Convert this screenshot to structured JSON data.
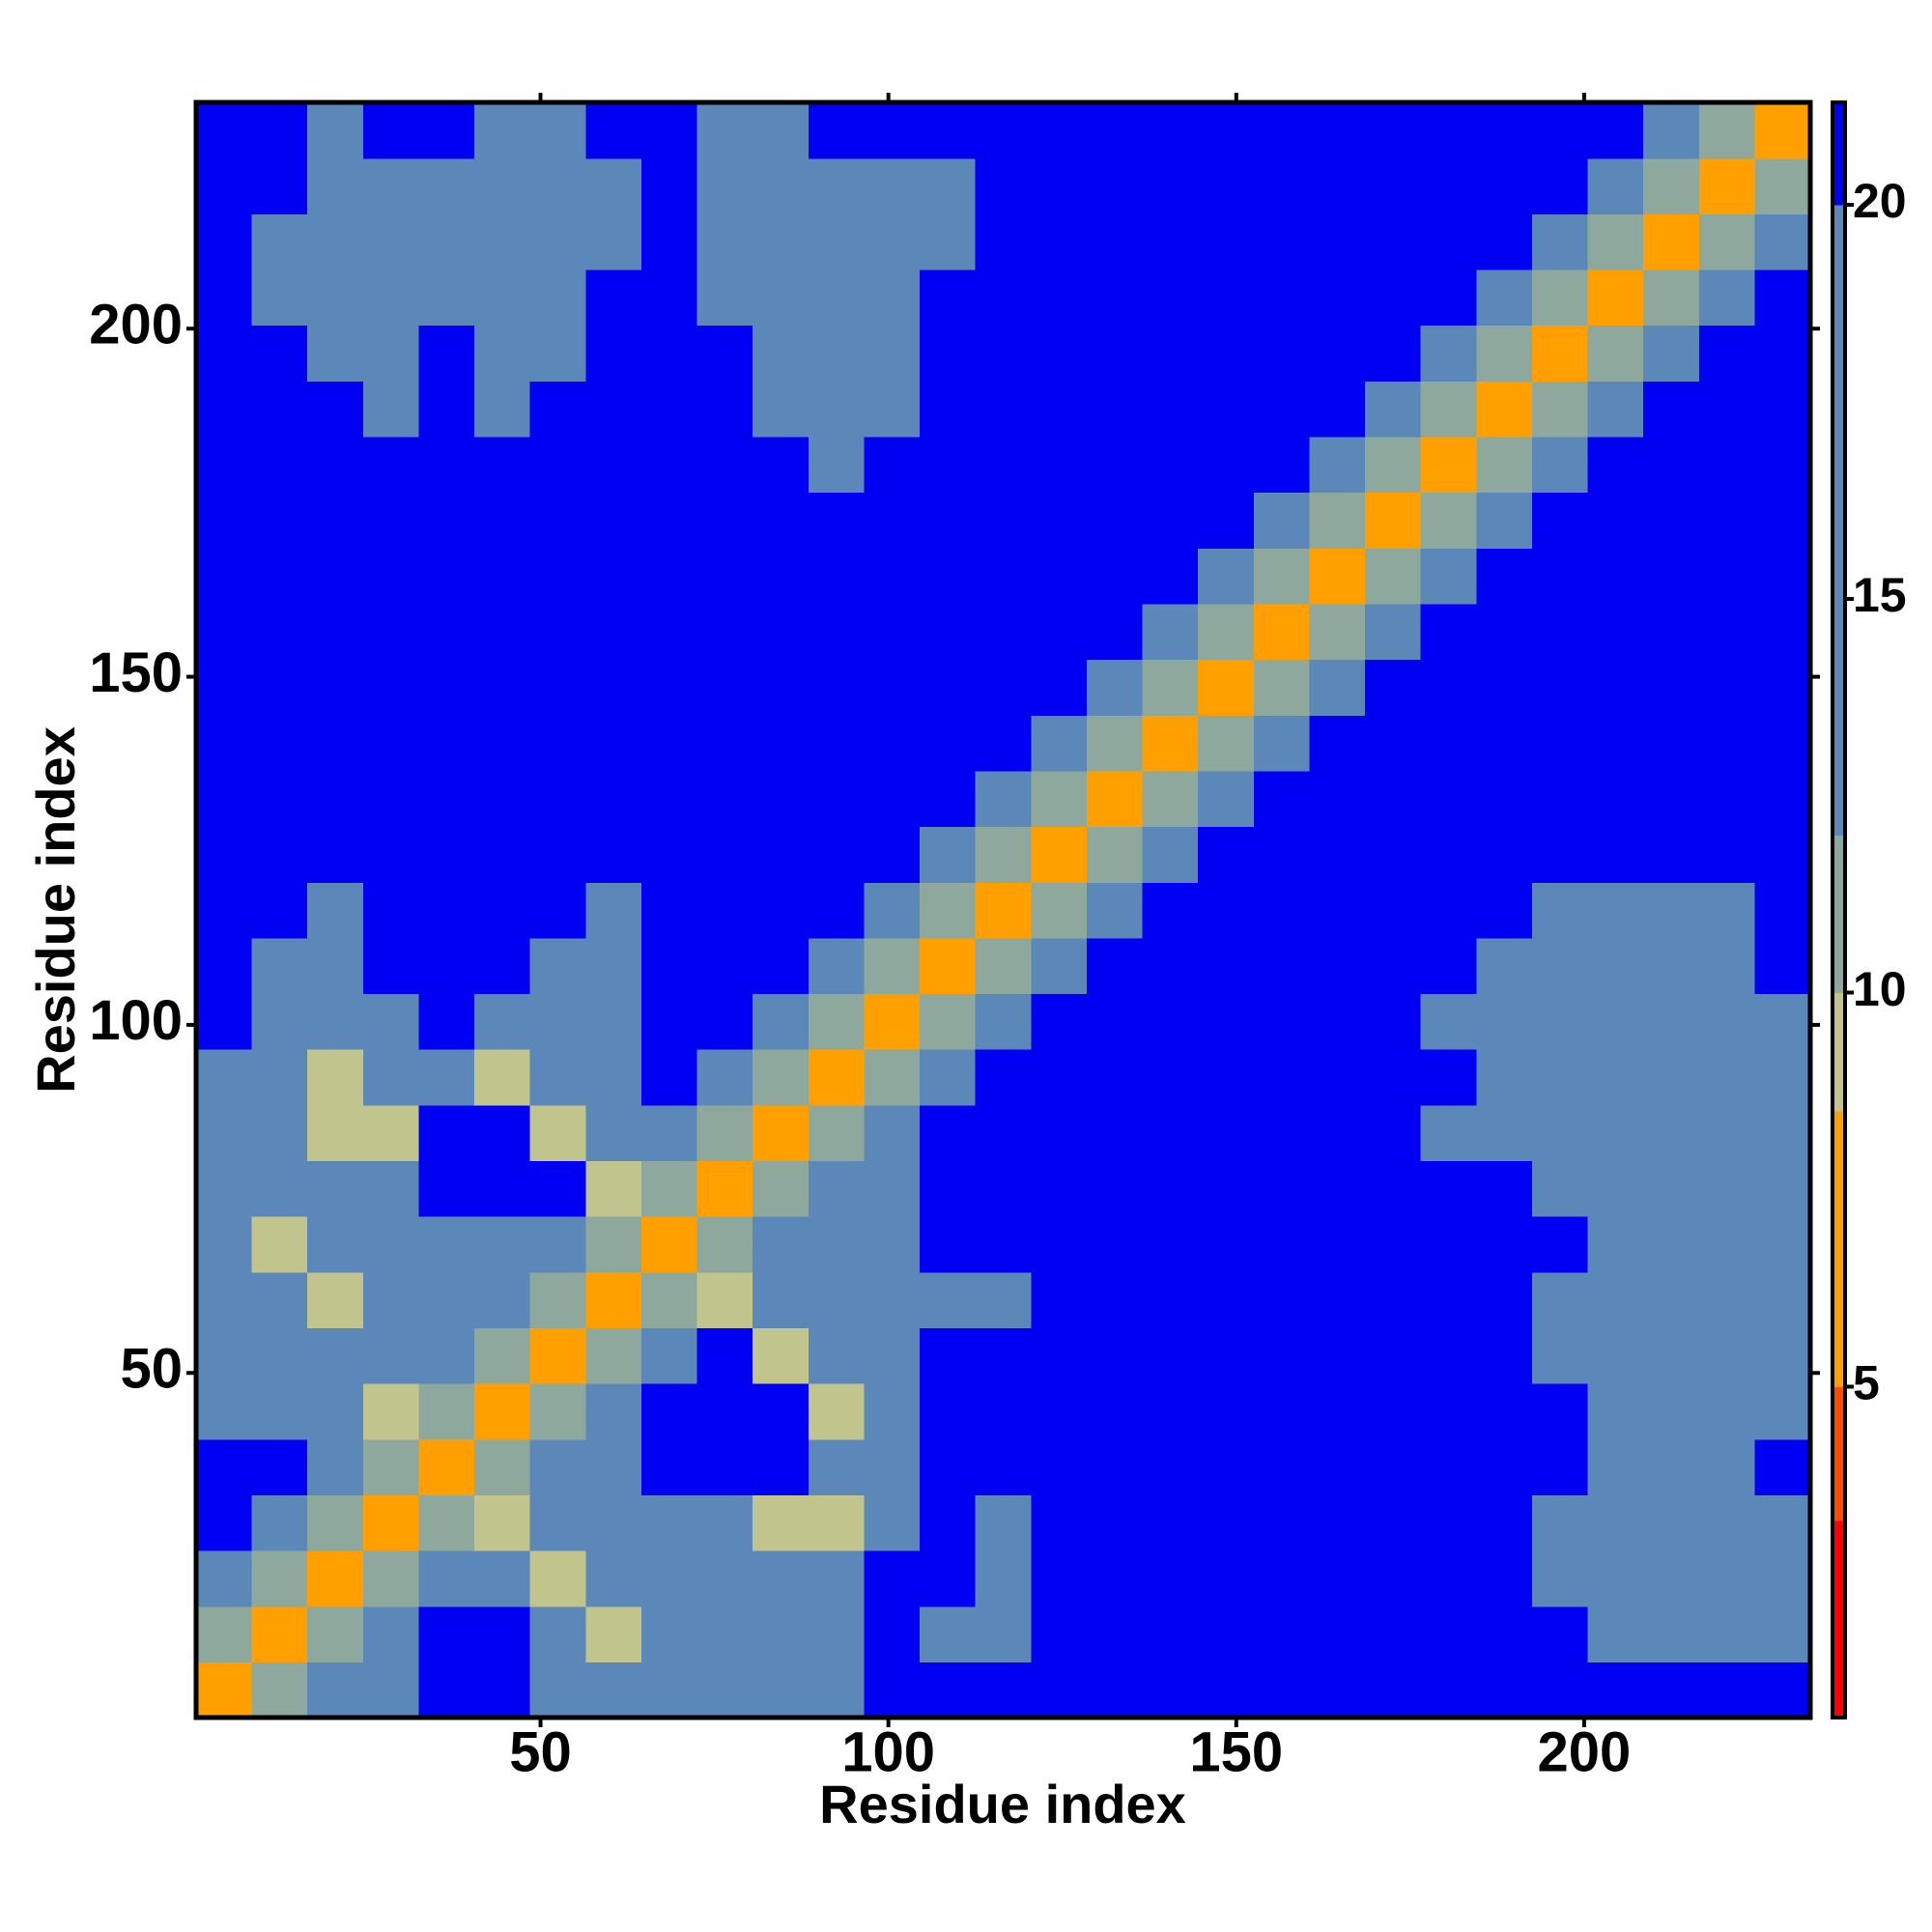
{
  "chart_data": {
    "type": "heatmap",
    "xlabel": "Residue index",
    "ylabel": "Residue index",
    "xlim": [
      0.5,
      232.5
    ],
    "ylim": [
      0.5,
      232.5
    ],
    "xticks": [
      50,
      100,
      150,
      200
    ],
    "yticks": [
      50,
      100,
      150,
      200
    ],
    "x_bins": [
      0.5,
      8.5,
      16.5,
      24.5,
      32.5,
      40.5,
      48.5,
      56.5,
      64.5,
      72.5,
      80.5,
      88.5,
      96.5,
      104.5,
      112.5,
      120.5,
      128.5,
      136.5,
      144.5,
      152.5,
      160.5,
      168.5,
      176.5,
      184.5,
      192.5,
      200.5,
      208.5,
      216.5,
      224.5,
      232.5
    ],
    "y_bins": [
      0.5,
      8.5,
      16.5,
      24.5,
      32.5,
      40.5,
      48.5,
      56.5,
      64.5,
      72.5,
      80.5,
      88.5,
      96.5,
      104.5,
      112.5,
      120.5,
      128.5,
      136.5,
      144.5,
      152.5,
      160.5,
      168.5,
      176.5,
      184.5,
      192.5,
      200.5,
      208.5,
      216.5,
      224.5,
      232.5
    ],
    "z": [
      [
        5,
        11,
        16,
        16,
        21,
        21,
        16,
        16,
        16,
        16,
        16,
        16,
        21,
        21,
        21,
        21,
        21,
        21,
        21,
        21,
        21,
        21,
        21,
        21,
        21,
        21,
        21,
        21,
        21
      ],
      [
        11,
        5,
        11,
        16,
        21,
        21,
        16,
        9,
        16,
        16,
        16,
        16,
        21,
        19,
        19,
        21,
        21,
        21,
        21,
        21,
        21,
        21,
        21,
        21,
        21,
        19,
        16,
        16,
        19
      ],
      [
        16,
        11,
        5,
        11,
        16,
        16,
        9,
        16,
        16,
        16,
        16,
        16,
        21,
        21,
        19,
        21,
        21,
        21,
        21,
        21,
        21,
        21,
        21,
        21,
        19,
        16,
        16,
        16,
        19
      ],
      [
        21,
        16,
        11,
        5,
        11,
        9,
        16,
        16,
        16,
        16,
        9,
        9,
        16,
        21,
        19,
        21,
        21,
        21,
        21,
        21,
        21,
        21,
        21,
        21,
        19,
        19,
        16,
        16,
        19
      ],
      [
        21,
        21,
        16,
        11,
        5,
        11,
        16,
        16,
        21,
        21,
        21,
        16,
        16,
        21,
        21,
        21,
        21,
        21,
        21,
        21,
        21,
        21,
        21,
        21,
        21,
        19,
        16,
        19,
        21
      ],
      [
        16,
        16,
        16,
        9,
        11,
        5,
        11,
        16,
        21,
        21,
        21,
        9,
        16,
        21,
        21,
        21,
        21,
        21,
        21,
        21,
        21,
        21,
        21,
        21,
        21,
        19,
        16,
        19,
        19
      ],
      [
        16,
        16,
        16,
        16,
        16,
        11,
        5,
        11,
        16,
        21,
        9,
        16,
        16,
        21,
        21,
        21,
        21,
        21,
        21,
        21,
        21,
        21,
        21,
        21,
        19,
        19,
        16,
        16,
        19
      ],
      [
        16,
        16,
        9,
        16,
        16,
        16,
        11,
        5,
        11,
        9,
        16,
        16,
        16,
        16,
        19,
        21,
        21,
        21,
        21,
        21,
        21,
        21,
        21,
        21,
        19,
        19,
        16,
        16,
        19
      ],
      [
        16,
        9,
        16,
        16,
        16,
        16,
        16,
        11,
        5,
        11,
        16,
        16,
        16,
        21,
        21,
        21,
        21,
        21,
        21,
        21,
        21,
        21,
        21,
        21,
        21,
        19,
        16,
        19,
        19
      ],
      [
        16,
        16,
        16,
        16,
        21,
        21,
        21,
        9,
        11,
        5,
        11,
        16,
        16,
        21,
        21,
        21,
        21,
        21,
        21,
        21,
        21,
        21,
        21,
        21,
        19,
        16,
        16,
        16,
        19
      ],
      [
        16,
        16,
        9,
        9,
        21,
        21,
        9,
        16,
        16,
        11,
        5,
        11,
        16,
        21,
        21,
        21,
        21,
        21,
        21,
        21,
        21,
        21,
        19,
        19,
        19,
        16,
        16,
        16,
        16
      ],
      [
        16,
        16,
        9,
        16,
        16,
        9,
        16,
        16,
        21,
        16,
        11,
        5,
        11,
        16,
        21,
        21,
        21,
        21,
        21,
        21,
        21,
        21,
        21,
        19,
        19,
        16,
        16,
        16,
        16
      ],
      [
        21,
        16,
        16,
        16,
        21,
        16,
        16,
        16,
        21,
        21,
        16,
        11,
        5,
        11,
        16,
        21,
        21,
        21,
        21,
        21,
        21,
        21,
        19,
        19,
        19,
        19,
        16,
        19,
        19
      ],
      [
        21,
        19,
        19,
        21,
        21,
        21,
        19,
        16,
        21,
        21,
        21,
        16,
        11,
        5,
        11,
        16,
        21,
        21,
        21,
        21,
        21,
        21,
        21,
        19,
        19,
        16,
        16,
        19,
        21
      ],
      [
        21,
        21,
        19,
        21,
        21,
        21,
        21,
        19,
        21,
        21,
        21,
        21,
        16,
        11,
        5,
        11,
        16,
        21,
        21,
        21,
        21,
        21,
        21,
        21,
        19,
        19,
        19,
        19,
        21
      ],
      [
        21,
        21,
        21,
        21,
        21,
        21,
        21,
        21,
        21,
        21,
        21,
        21,
        21,
        16,
        11,
        5,
        11,
        16,
        21,
        21,
        21,
        21,
        21,
        21,
        21,
        21,
        21,
        21,
        21
      ],
      [
        21,
        21,
        21,
        21,
        21,
        21,
        21,
        21,
        21,
        21,
        21,
        21,
        21,
        21,
        16,
        11,
        5,
        11,
        16,
        21,
        21,
        21,
        21,
        21,
        21,
        21,
        21,
        21,
        21
      ],
      [
        21,
        21,
        21,
        21,
        21,
        21,
        21,
        21,
        21,
        21,
        21,
        21,
        21,
        21,
        21,
        16,
        11,
        5,
        11,
        16,
        21,
        21,
        21,
        21,
        21,
        21,
        21,
        21,
        21
      ],
      [
        21,
        21,
        21,
        21,
        21,
        21,
        21,
        21,
        21,
        21,
        21,
        21,
        21,
        21,
        21,
        21,
        16,
        11,
        5,
        11,
        16,
        21,
        21,
        21,
        21,
        21,
        21,
        21,
        21
      ],
      [
        21,
        21,
        21,
        21,
        21,
        21,
        21,
        21,
        21,
        21,
        21,
        21,
        21,
        21,
        21,
        21,
        21,
        16,
        11,
        5,
        11,
        16,
        21,
        21,
        21,
        21,
        21,
        21,
        21
      ],
      [
        21,
        21,
        21,
        21,
        21,
        21,
        21,
        21,
        21,
        21,
        21,
        21,
        21,
        21,
        21,
        21,
        21,
        21,
        16,
        11,
        5,
        11,
        16,
        21,
        21,
        21,
        21,
        21,
        21
      ],
      [
        21,
        21,
        21,
        21,
        21,
        21,
        21,
        21,
        21,
        21,
        21,
        21,
        21,
        21,
        21,
        21,
        21,
        21,
        21,
        16,
        11,
        5,
        11,
        16,
        21,
        21,
        21,
        21,
        21
      ],
      [
        21,
        21,
        21,
        21,
        21,
        21,
        21,
        21,
        21,
        21,
        21,
        19,
        21,
        21,
        21,
        21,
        21,
        21,
        21,
        21,
        16,
        11,
        5,
        11,
        16,
        21,
        21,
        21,
        21
      ],
      [
        21,
        21,
        21,
        19,
        21,
        19,
        21,
        21,
        21,
        21,
        19,
        19,
        19,
        21,
        21,
        21,
        21,
        21,
        21,
        21,
        21,
        16,
        11,
        5,
        11,
        16,
        21,
        21,
        21
      ],
      [
        21,
        21,
        19,
        19,
        21,
        19,
        19,
        21,
        21,
        21,
        19,
        19,
        19,
        21,
        21,
        21,
        21,
        21,
        21,
        21,
        21,
        21,
        16,
        11,
        5,
        11,
        16,
        21,
        21
      ],
      [
        21,
        19,
        16,
        16,
        19,
        16,
        19,
        21,
        21,
        19,
        16,
        19,
        19,
        21,
        21,
        21,
        21,
        21,
        21,
        21,
        21,
        21,
        21,
        16,
        11,
        5,
        11,
        16,
        21
      ],
      [
        21,
        16,
        16,
        16,
        16,
        16,
        16,
        19,
        21,
        16,
        16,
        19,
        19,
        19,
        21,
        21,
        21,
        21,
        21,
        21,
        21,
        21,
        21,
        21,
        16,
        11,
        5,
        11,
        16
      ],
      [
        21,
        21,
        16,
        16,
        16,
        16,
        16,
        19,
        21,
        16,
        16,
        16,
        19,
        19,
        21,
        21,
        21,
        21,
        21,
        21,
        21,
        21,
        21,
        21,
        21,
        16,
        11,
        5,
        11
      ],
      [
        21,
        21,
        19,
        21,
        21,
        19,
        19,
        21,
        21,
        19,
        16,
        21,
        21,
        21,
        21,
        21,
        21,
        21,
        21,
        21,
        21,
        21,
        21,
        21,
        21,
        21,
        16,
        11,
        5
      ]
    ],
    "colorbar": {
      "ticks": [
        5,
        10,
        15,
        20
      ],
      "levels": [
        0.8,
        3.3,
        5,
        8.5,
        10,
        12,
        20,
        21.3
      ],
      "colors": [
        "#ff0000",
        "#ff4a00",
        "#ffa000",
        "#c2c48e",
        "#8fa89e",
        "#5b88b8",
        "#0000f2"
      ]
    }
  }
}
